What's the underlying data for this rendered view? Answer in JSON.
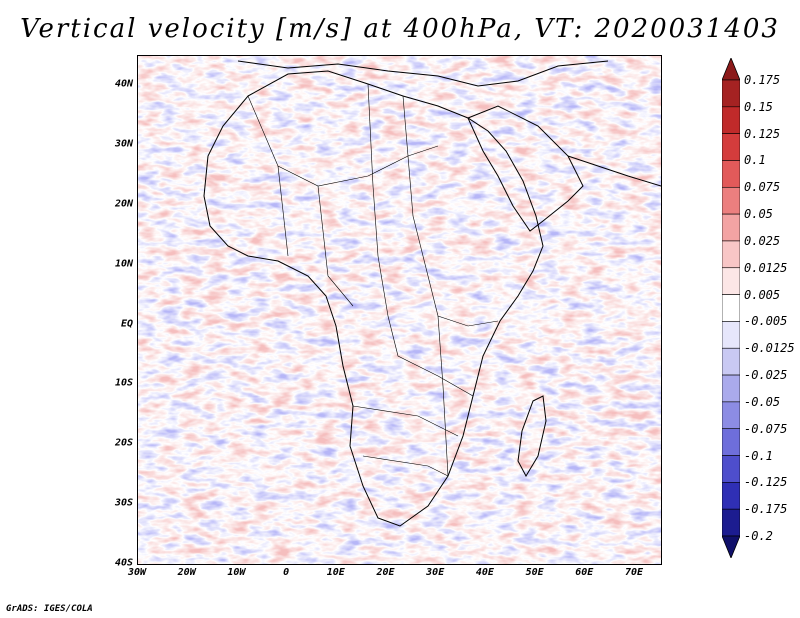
{
  "title": "Vertical velocity [m/s] at 400hPa, VT: 2020031403",
  "credit": "GrADS: IGES/COLA",
  "map": {
    "lon_range": [
      -30,
      75
    ],
    "lat_range": [
      -40,
      45
    ],
    "x_ticks": [
      "30W",
      "20W",
      "10W",
      "0",
      "10E",
      "20E",
      "30E",
      "40E",
      "50E",
      "60E",
      "70E"
    ],
    "y_ticks": [
      "40N",
      "30N",
      "20N",
      "10N",
      "EQ",
      "10S",
      "20S",
      "30S",
      "40S"
    ]
  },
  "colorbar": {
    "levels": [
      "0.175",
      "0.15",
      "0.125",
      "0.1",
      "0.075",
      "0.05",
      "0.025",
      "0.0125",
      "0.005",
      "-0.005",
      "-0.0125",
      "-0.025",
      "-0.05",
      "-0.075",
      "-0.1",
      "-0.125",
      "-0.175",
      "-0.2"
    ],
    "colors": [
      "#8b1a1a",
      "#a52222",
      "#c02a2a",
      "#d43c3c",
      "#e25a5a",
      "#ec7f7f",
      "#f3a3a3",
      "#f8c6c6",
      "#fce6e6",
      "#ffffff",
      "#e6e6fb",
      "#c9c9f3",
      "#aaaaec",
      "#8c8ce4",
      "#6e6edb",
      "#4e4ecc",
      "#2f2fb5",
      "#1c1c90",
      "#10106a"
    ]
  },
  "colors": {
    "positive": "#d44040",
    "negative": "#5a5ae0",
    "background": "#ffffff"
  }
}
